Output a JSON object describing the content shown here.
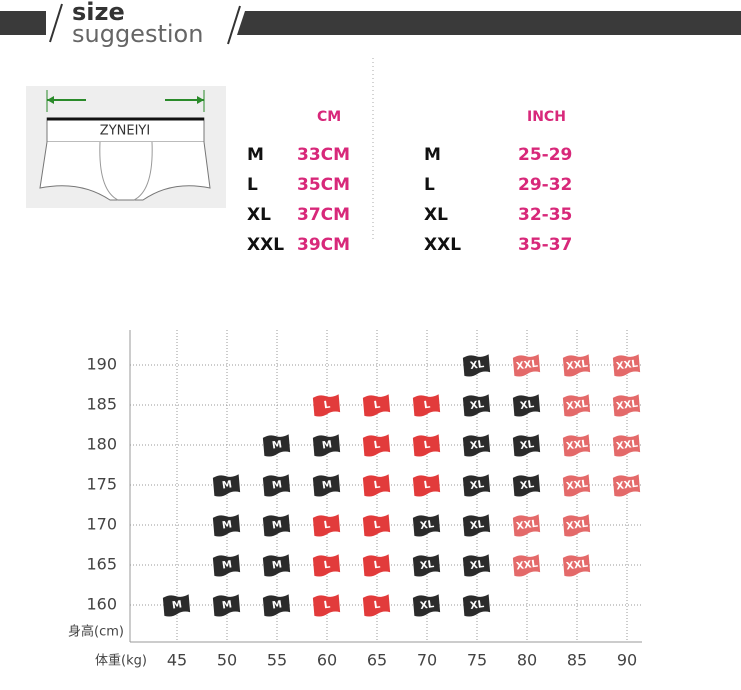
{
  "header": {
    "title": "size",
    "subtitle": "suggestion"
  },
  "diagram": {
    "brand": "ZYNEIYI"
  },
  "cm_table": {
    "header": "CM",
    "rows": [
      [
        "M",
        "33CM"
      ],
      [
        "L",
        "35CM"
      ],
      [
        "XL",
        "37CM"
      ],
      [
        "XXL",
        "39CM"
      ]
    ]
  },
  "inch_table": {
    "header": "INCH",
    "rows": [
      [
        "M",
        "25-29"
      ],
      [
        "L",
        "29-32"
      ],
      [
        "XL",
        "32-35"
      ],
      [
        "XXL",
        "35-37"
      ]
    ]
  },
  "size_grid": {
    "y_label": "身高(cm)",
    "x_label": "体重(kg)",
    "weights": [
      45,
      50,
      55,
      60,
      65,
      70,
      75,
      80,
      85,
      90
    ],
    "heights": [
      190,
      185,
      180,
      175,
      170,
      165,
      160
    ],
    "cells": [
      [
        null,
        null,
        null,
        null,
        null,
        null,
        {
          "size": "XL",
          "color": "#2b2b2b"
        },
        {
          "size": "XXL",
          "color": "#e46a6a"
        },
        {
          "size": "XXL",
          "color": "#e46a6a"
        },
        {
          "size": "XXL",
          "color": "#e46a6a"
        }
      ],
      [
        null,
        null,
        null,
        {
          "size": "L",
          "color": "#e23b3b"
        },
        {
          "size": "L",
          "color": "#e23b3b"
        },
        {
          "size": "L",
          "color": "#e23b3b"
        },
        {
          "size": "XL",
          "color": "#2b2b2b"
        },
        {
          "size": "XL",
          "color": "#2b2b2b"
        },
        {
          "size": "XXL",
          "color": "#e46a6a"
        },
        {
          "size": "XXL",
          "color": "#e46a6a"
        }
      ],
      [
        null,
        null,
        {
          "size": "M",
          "color": "#2b2b2b"
        },
        {
          "size": "M",
          "color": "#2b2b2b"
        },
        {
          "size": "L",
          "color": "#e23b3b"
        },
        {
          "size": "L",
          "color": "#e23b3b"
        },
        {
          "size": "XL",
          "color": "#2b2b2b"
        },
        {
          "size": "XL",
          "color": "#2b2b2b"
        },
        {
          "size": "XXL",
          "color": "#e46a6a"
        },
        {
          "size": "XXL",
          "color": "#e46a6a"
        }
      ],
      [
        null,
        {
          "size": "M",
          "color": "#2b2b2b"
        },
        {
          "size": "M",
          "color": "#2b2b2b"
        },
        {
          "size": "M",
          "color": "#2b2b2b"
        },
        {
          "size": "L",
          "color": "#e23b3b"
        },
        {
          "size": "L",
          "color": "#e23b3b"
        },
        {
          "size": "XL",
          "color": "#2b2b2b"
        },
        {
          "size": "XL",
          "color": "#2b2b2b"
        },
        {
          "size": "XXL",
          "color": "#e46a6a"
        },
        {
          "size": "XXL",
          "color": "#e46a6a"
        }
      ],
      [
        null,
        {
          "size": "M",
          "color": "#2b2b2b"
        },
        {
          "size": "M",
          "color": "#2b2b2b"
        },
        {
          "size": "L",
          "color": "#e23b3b"
        },
        {
          "size": "L",
          "color": "#e23b3b"
        },
        {
          "size": "XL",
          "color": "#2b2b2b"
        },
        {
          "size": "XL",
          "color": "#2b2b2b"
        },
        {
          "size": "XXL",
          "color": "#e46a6a"
        },
        {
          "size": "XXL",
          "color": "#e46a6a"
        },
        null
      ],
      [
        null,
        {
          "size": "M",
          "color": "#2b2b2b"
        },
        {
          "size": "M",
          "color": "#2b2b2b"
        },
        {
          "size": "L",
          "color": "#e23b3b"
        },
        {
          "size": "L",
          "color": "#e23b3b"
        },
        {
          "size": "XL",
          "color": "#2b2b2b"
        },
        {
          "size": "XL",
          "color": "#2b2b2b"
        },
        {
          "size": "XXL",
          "color": "#e46a6a"
        },
        {
          "size": "XXL",
          "color": "#e46a6a"
        },
        null
      ],
      [
        {
          "size": "M",
          "color": "#2b2b2b"
        },
        {
          "size": "M",
          "color": "#2b2b2b"
        },
        {
          "size": "M",
          "color": "#2b2b2b"
        },
        {
          "size": "L",
          "color": "#e23b3b"
        },
        {
          "size": "L",
          "color": "#e23b3b"
        },
        {
          "size": "XL",
          "color": "#2b2b2b"
        },
        {
          "size": "XL",
          "color": "#2b2b2b"
        },
        null,
        null,
        null
      ]
    ]
  }
}
